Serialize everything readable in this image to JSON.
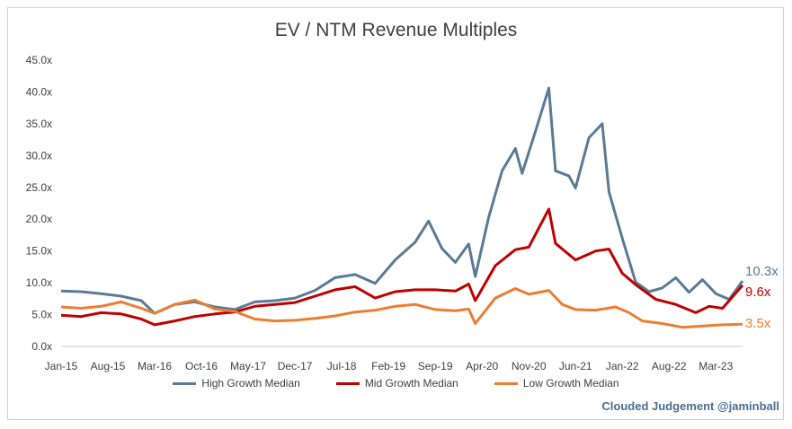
{
  "chart_data": {
    "type": "line",
    "title": "EV / NTM Revenue Multiples",
    "xlabel": "",
    "ylabel": "",
    "ylim": [
      0,
      45
    ],
    "yticks": [
      "0.0x",
      "5.0x",
      "10.0x",
      "15.0x",
      "20.0x",
      "25.0x",
      "30.0x",
      "35.0x",
      "40.0x",
      "45.0x"
    ],
    "xticks": [
      "Jan-15",
      "Aug-15",
      "Mar-16",
      "Oct-16",
      "May-17",
      "Dec-17",
      "Jul-18",
      "Feb-19",
      "Sep-19",
      "Apr-20",
      "Nov-20",
      "Jun-21",
      "Jan-22",
      "Aug-22",
      "Mar-23"
    ],
    "x_range": [
      "2015-01",
      "2023-07"
    ],
    "grid": false,
    "legend_position": "bottom",
    "series": [
      {
        "name": "High Growth Median",
        "color": "#5b7a95",
        "end_label": "10.3x",
        "points": [
          [
            "2015-01",
            8.7
          ],
          [
            "2015-04",
            8.6
          ],
          [
            "2015-07",
            8.3
          ],
          [
            "2015-10",
            7.9
          ],
          [
            "2016-01",
            7.2
          ],
          [
            "2016-03",
            5.2
          ],
          [
            "2016-06",
            6.6
          ],
          [
            "2016-09",
            7.0
          ],
          [
            "2016-12",
            6.2
          ],
          [
            "2017-03",
            5.8
          ],
          [
            "2017-06",
            7.0
          ],
          [
            "2017-09",
            7.2
          ],
          [
            "2017-12",
            7.6
          ],
          [
            "2018-03",
            8.8
          ],
          [
            "2018-06",
            10.8
          ],
          [
            "2018-09",
            11.3
          ],
          [
            "2018-12",
            9.9
          ],
          [
            "2019-03",
            13.6
          ],
          [
            "2019-06",
            16.4
          ],
          [
            "2019-08",
            19.7
          ],
          [
            "2019-10",
            15.4
          ],
          [
            "2019-12",
            13.2
          ],
          [
            "2020-02",
            16.1
          ],
          [
            "2020-03",
            11.0
          ],
          [
            "2020-05",
            20.3
          ],
          [
            "2020-07",
            27.6
          ],
          [
            "2020-09",
            31.1
          ],
          [
            "2020-10",
            27.2
          ],
          [
            "2020-12",
            33.8
          ],
          [
            "2021-02",
            40.6
          ],
          [
            "2021-03",
            27.6
          ],
          [
            "2021-05",
            26.8
          ],
          [
            "2021-06",
            24.9
          ],
          [
            "2021-08",
            32.8
          ],
          [
            "2021-10",
            35.0
          ],
          [
            "2021-11",
            24.3
          ],
          [
            "2022-01",
            17.0
          ],
          [
            "2022-03",
            10.1
          ],
          [
            "2022-05",
            8.6
          ],
          [
            "2022-07",
            9.2
          ],
          [
            "2022-09",
            10.8
          ],
          [
            "2022-11",
            8.5
          ],
          [
            "2023-01",
            10.5
          ],
          [
            "2023-03",
            8.3
          ],
          [
            "2023-05",
            7.4
          ],
          [
            "2023-07",
            10.3
          ]
        ]
      },
      {
        "name": "Mid Growth Median",
        "color": "#c00000",
        "end_label": "9.6x",
        "points": [
          [
            "2015-01",
            4.9
          ],
          [
            "2015-04",
            4.7
          ],
          [
            "2015-07",
            5.3
          ],
          [
            "2015-10",
            5.1
          ],
          [
            "2016-01",
            4.3
          ],
          [
            "2016-03",
            3.4
          ],
          [
            "2016-06",
            4.0
          ],
          [
            "2016-09",
            4.7
          ],
          [
            "2016-12",
            5.1
          ],
          [
            "2017-03",
            5.4
          ],
          [
            "2017-06",
            6.3
          ],
          [
            "2017-09",
            6.6
          ],
          [
            "2017-12",
            6.9
          ],
          [
            "2018-03",
            7.9
          ],
          [
            "2018-06",
            8.9
          ],
          [
            "2018-09",
            9.4
          ],
          [
            "2018-12",
            7.6
          ],
          [
            "2019-03",
            8.6
          ],
          [
            "2019-06",
            8.9
          ],
          [
            "2019-09",
            8.9
          ],
          [
            "2019-12",
            8.7
          ],
          [
            "2020-02",
            9.8
          ],
          [
            "2020-03",
            7.2
          ],
          [
            "2020-06",
            12.7
          ],
          [
            "2020-09",
            15.2
          ],
          [
            "2020-11",
            15.6
          ],
          [
            "2021-02",
            21.6
          ],
          [
            "2021-03",
            16.2
          ],
          [
            "2021-06",
            13.6
          ],
          [
            "2021-09",
            15.0
          ],
          [
            "2021-11",
            15.3
          ],
          [
            "2022-01",
            11.5
          ],
          [
            "2022-03",
            9.7
          ],
          [
            "2022-06",
            7.4
          ],
          [
            "2022-09",
            6.6
          ],
          [
            "2022-12",
            5.3
          ],
          [
            "2023-02",
            6.3
          ],
          [
            "2023-04",
            6.0
          ],
          [
            "2023-07",
            9.6
          ]
        ]
      },
      {
        "name": "Low Growth Median",
        "color": "#ed7d31",
        "end_label": "3.5x",
        "points": [
          [
            "2015-01",
            6.2
          ],
          [
            "2015-04",
            6.0
          ],
          [
            "2015-07",
            6.3
          ],
          [
            "2015-10",
            7.0
          ],
          [
            "2016-01",
            6.0
          ],
          [
            "2016-03",
            5.2
          ],
          [
            "2016-06",
            6.6
          ],
          [
            "2016-09",
            7.3
          ],
          [
            "2016-12",
            5.9
          ],
          [
            "2017-03",
            5.5
          ],
          [
            "2017-06",
            4.3
          ],
          [
            "2017-09",
            4.0
          ],
          [
            "2017-12",
            4.1
          ],
          [
            "2018-03",
            4.4
          ],
          [
            "2018-06",
            4.8
          ],
          [
            "2018-09",
            5.4
          ],
          [
            "2018-12",
            5.7
          ],
          [
            "2019-03",
            6.3
          ],
          [
            "2019-06",
            6.6
          ],
          [
            "2019-09",
            5.8
          ],
          [
            "2019-12",
            5.6
          ],
          [
            "2020-02",
            5.9
          ],
          [
            "2020-03",
            3.6
          ],
          [
            "2020-06",
            7.6
          ],
          [
            "2020-09",
            9.1
          ],
          [
            "2020-11",
            8.2
          ],
          [
            "2021-02",
            8.8
          ],
          [
            "2021-04",
            6.6
          ],
          [
            "2021-06",
            5.8
          ],
          [
            "2021-09",
            5.7
          ],
          [
            "2021-12",
            6.2
          ],
          [
            "2022-02",
            5.3
          ],
          [
            "2022-04",
            4.0
          ],
          [
            "2022-07",
            3.6
          ],
          [
            "2022-10",
            3.0
          ],
          [
            "2023-01",
            3.2
          ],
          [
            "2023-04",
            3.4
          ],
          [
            "2023-07",
            3.5
          ]
        ]
      }
    ]
  },
  "watermark": "Clouded Judgement @jaminball"
}
